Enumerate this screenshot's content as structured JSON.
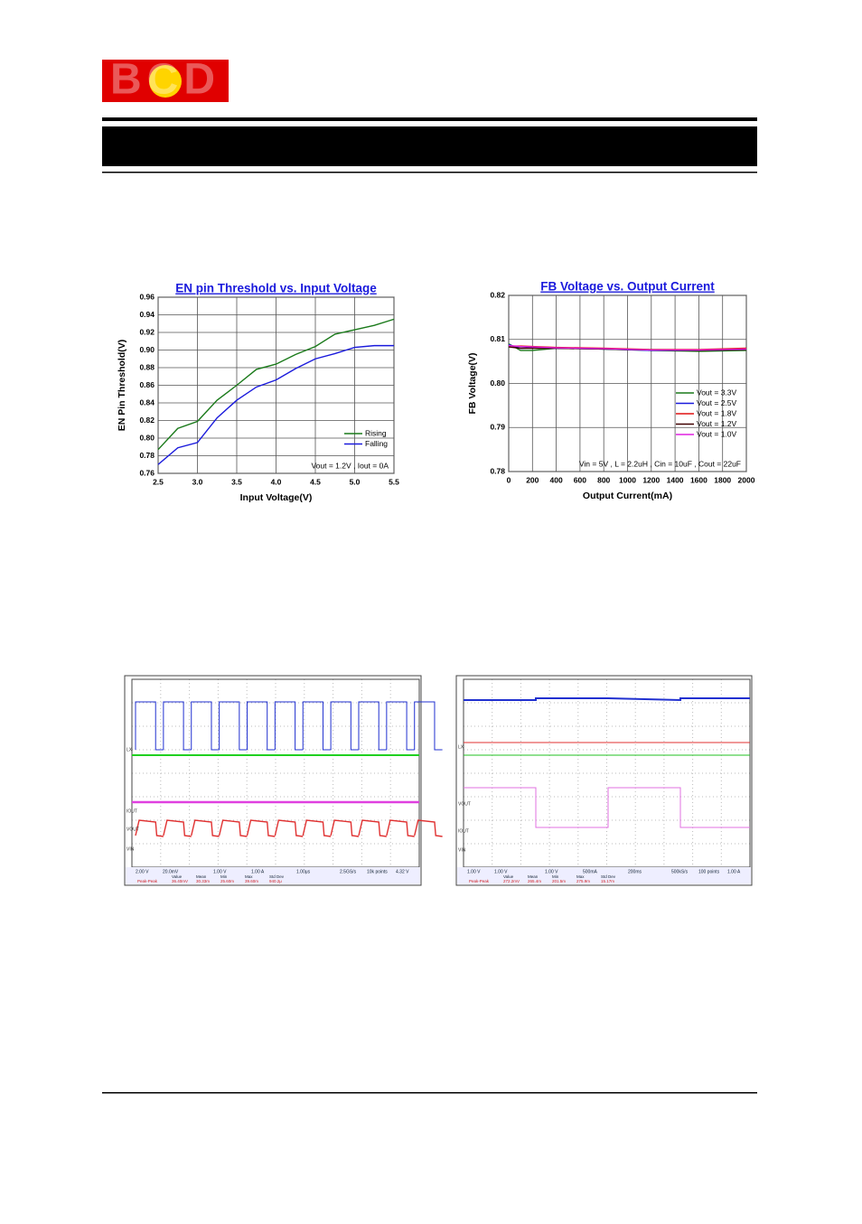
{
  "header": {
    "logo": "BCD"
  },
  "chart_data": [
    {
      "type": "line",
      "title": "EN pin Threshold vs. Input Voltage",
      "xlabel": "Input Voltage(V)",
      "ylabel": "EN Pin Threshold(V)",
      "x": [
        2.5,
        2.75,
        3.0,
        3.25,
        3.5,
        3.75,
        4.0,
        4.25,
        4.5,
        4.75,
        5.0,
        5.25,
        5.5
      ],
      "series": [
        {
          "name": "Rising",
          "color": "#1a7a1a",
          "values": [
            0.787,
            0.811,
            0.819,
            0.843,
            0.86,
            0.878,
            0.884,
            0.895,
            0.904,
            0.918,
            0.923,
            0.928,
            0.935
          ]
        },
        {
          "name": "Falling",
          "color": "#1a1adc",
          "values": [
            0.77,
            0.789,
            0.795,
            0.823,
            0.843,
            0.858,
            0.866,
            0.879,
            0.89,
            0.896,
            0.903,
            0.905,
            0.905
          ]
        }
      ],
      "xlim": [
        2.5,
        5.5
      ],
      "xticks": [
        2.5,
        {
          "value": 3,
          "label": "3.0"
        },
        3.5,
        {
          "value": 4,
          "label": "4.0"
        },
        4.5,
        {
          "value": 5,
          "label": "5.0"
        },
        5.5
      ],
      "ylim": [
        0.76,
        0.96
      ],
      "yticks": [
        0.76,
        0.78,
        {
          "value": 0.8,
          "label": "0.80"
        },
        0.82,
        0.84,
        0.86,
        0.88,
        {
          "value": 0.9,
          "label": "0.90"
        },
        0.92,
        0.94,
        0.96
      ],
      "grid": true,
      "legend": "lower right",
      "annotation": "Vout = 1.2V , Iout = 0A"
    },
    {
      "type": "line",
      "title": "FB Voltage vs. Output Current",
      "xlabel": "Output Current(mA)",
      "ylabel": "FB Voltage(V)",
      "x": [
        0,
        100,
        200,
        400,
        800,
        1200,
        1600,
        2000
      ],
      "series": [
        {
          "name": "Vout = 3.3V",
          "color": "#1a7a1a",
          "values": [
            0.809,
            0.8075,
            0.8075,
            0.808,
            0.8078,
            0.8075,
            0.8073,
            0.8075
          ]
        },
        {
          "name": "Vout = 2.5V",
          "color": "#1a1adc",
          "values": [
            0.8088,
            0.808,
            0.8081,
            0.808,
            0.8078,
            0.8075,
            0.8075,
            0.8077
          ]
        },
        {
          "name": "Vout = 1.8V",
          "color": "#e01010",
          "values": [
            0.8085,
            0.8085,
            0.8084,
            0.8082,
            0.808,
            0.8077,
            0.8077,
            0.808
          ]
        },
        {
          "name": "Vout = 1.2V",
          "color": "#400000",
          "values": [
            0.8083,
            0.808,
            0.808,
            0.808,
            0.8078,
            0.8076,
            0.8075,
            0.8077
          ]
        },
        {
          "name": "Vout = 1.0V",
          "color": "#e020e0",
          "values": [
            0.8086,
            0.8084,
            0.8083,
            0.8081,
            0.8079,
            0.8076,
            0.8076,
            0.8078
          ]
        }
      ],
      "xlim": [
        0,
        2000
      ],
      "xticks": [
        0,
        200,
        400,
        600,
        800,
        1000,
        1200,
        1400,
        1600,
        1800,
        2000
      ],
      "ylim": [
        0.78,
        0.82
      ],
      "yticks": [
        0.78,
        0.79,
        {
          "value": 0.8,
          "label": "0.80"
        },
        0.81,
        0.82
      ],
      "grid": true,
      "legend": "right",
      "annotation": "Vin = 5V , L = 2.2uH , Cin = 10uF , Cout = 22uF"
    }
  ],
  "scopes": [
    {
      "channels": [
        "LX",
        "IOUT",
        "VOUT",
        "VIN"
      ],
      "status": [
        "2.00 V",
        "20.0mV",
        "1.00 V",
        "1.00 A",
        "1.00μs",
        "2.5GS/s",
        "10k points",
        "4.32 V"
      ],
      "headers": [
        "Value",
        "Mean",
        "Min",
        "Max",
        "Std Dev"
      ],
      "measure": [
        "Peak-Peak",
        "36.40mV",
        "30.33m",
        "25.60m",
        "39.60m",
        "940.2μ"
      ]
    },
    {
      "channels": [
        "LX",
        "VOUT",
        "IOUT",
        "VIN"
      ],
      "status": [
        "1.00 V",
        "1.00 V",
        "1.00 V",
        "500mA",
        "200ms",
        "500kS/s",
        "100 points",
        "1.00 A"
      ],
      "headers": [
        "Value",
        "Mean",
        "Min",
        "Max",
        "Std Dev"
      ],
      "measure": [
        "Peak-Peak",
        "272.2mV",
        "265.4m",
        "201.5m",
        "275.9m",
        "15.17m"
      ]
    }
  ]
}
